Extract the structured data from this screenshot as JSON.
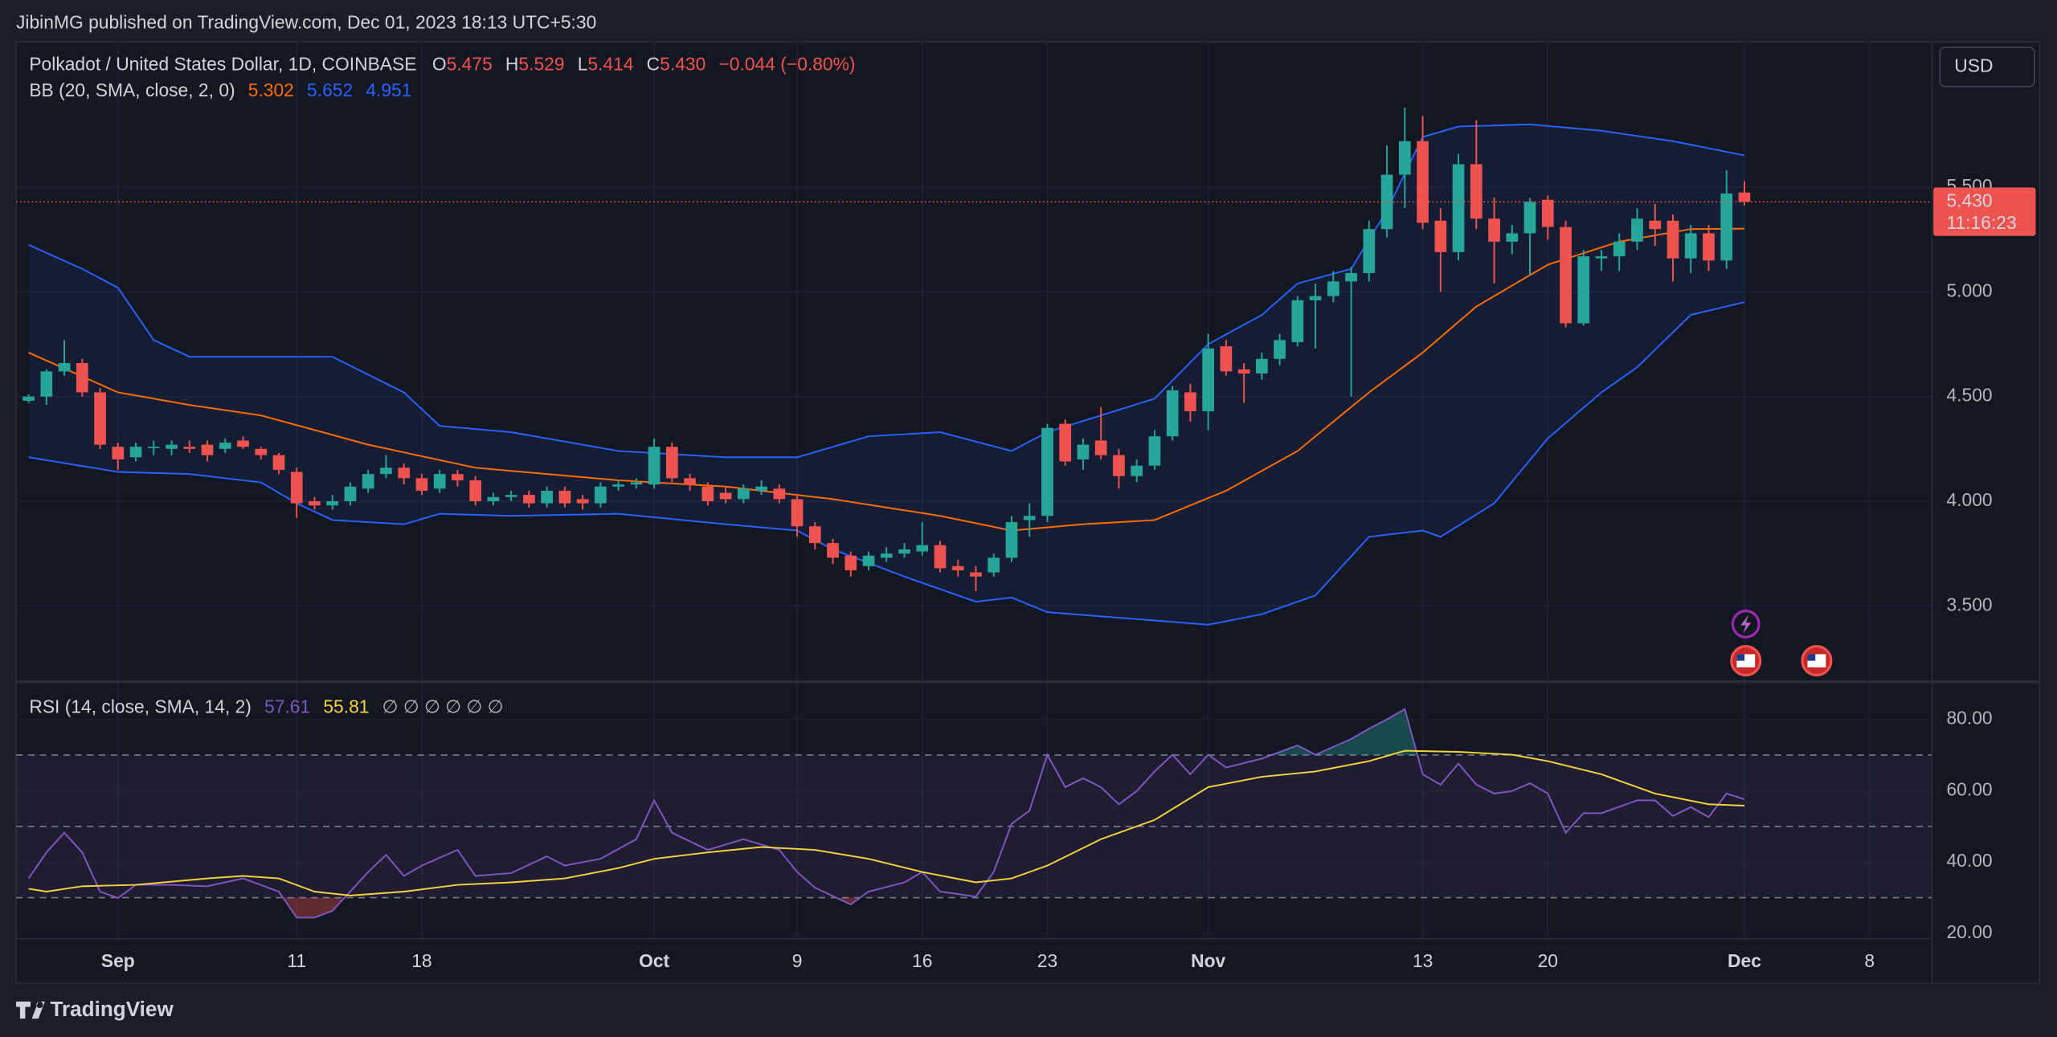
{
  "header": {
    "text": "JibinMG published on TradingView.com, Dec 01, 2023 18:13 UTC+5:30"
  },
  "footer": {
    "brand": "TradingView"
  },
  "currency_button": "USD",
  "chart_data": [
    {
      "type": "candlestick",
      "title": "Polkadot / United States Dollar, 1D, COINBASE",
      "ohlc_legend": {
        "open_label": "O",
        "open": "5.475",
        "high_label": "H",
        "high": "5.529",
        "low_label": "L",
        "low": "5.414",
        "close_label": "C",
        "close": "5.430",
        "change": "−0.044 (−0.80%)"
      },
      "last_price_label": "5.430",
      "countdown": "11:16:23",
      "up_color": "#26a69a",
      "down_color": "#ef5350",
      "x": [
        -5,
        -4,
        -3,
        -2,
        -1,
        0,
        1,
        2,
        3,
        4,
        5,
        6,
        7,
        8,
        9,
        10,
        11,
        12,
        13,
        14,
        15,
        16,
        17,
        18,
        19,
        20,
        21,
        22,
        23,
        24,
        25,
        26,
        27,
        28,
        29,
        30,
        31,
        32,
        33,
        34,
        35,
        36,
        37,
        38,
        39,
        40,
        41,
        42,
        43,
        44,
        45,
        46,
        47,
        48,
        49,
        50,
        51,
        52,
        53,
        54,
        55,
        56,
        57,
        58,
        59,
        60,
        61,
        62,
        63,
        64,
        65,
        66,
        67,
        68,
        69,
        70,
        71,
        72,
        73,
        74,
        75,
        76,
        77,
        78,
        79,
        80,
        81,
        82,
        83,
        84,
        85,
        86,
        87,
        88,
        89,
        90,
        91
      ],
      "open": [
        4.48,
        4.5,
        4.62,
        4.66,
        4.52,
        4.26,
        4.21,
        4.26,
        4.25,
        4.26,
        4.27,
        4.25,
        4.29,
        4.25,
        4.22,
        4.14,
        4.0,
        3.98,
        4.0,
        4.06,
        4.13,
        4.16,
        4.11,
        4.06,
        4.13,
        4.1,
        4.0,
        4.02,
        4.03,
        3.99,
        4.05,
        4.01,
        3.99,
        4.07,
        4.08,
        4.08,
        4.26,
        4.11,
        4.07,
        4.04,
        4.01,
        4.05,
        4.06,
        4.01,
        3.88,
        3.8,
        3.74,
        3.69,
        3.73,
        3.75,
        3.76,
        3.79,
        3.69,
        3.66,
        3.66,
        3.73,
        3.91,
        3.93,
        4.37,
        4.2,
        4.29,
        4.22,
        4.12,
        4.17,
        4.31,
        4.52,
        4.43,
        4.74,
        4.63,
        4.61,
        4.68,
        4.76,
        4.96,
        4.98,
        5.05,
        5.09,
        5.3,
        5.56,
        5.72,
        5.34,
        5.19,
        5.61,
        5.35,
        5.24,
        5.28,
        5.44,
        5.31,
        4.85,
        5.16,
        5.17,
        5.24,
        5.34,
        5.34,
        5.16,
        5.28,
        5.15,
        5.475
      ],
      "high": [
        4.51,
        4.63,
        4.77,
        4.68,
        4.54,
        4.28,
        4.28,
        4.29,
        4.29,
        4.29,
        4.29,
        4.3,
        4.31,
        4.26,
        4.23,
        4.16,
        4.02,
        4.03,
        4.09,
        4.15,
        4.22,
        4.18,
        4.13,
        4.15,
        4.15,
        4.12,
        4.04,
        4.05,
        4.05,
        4.07,
        4.07,
        4.03,
        4.09,
        4.1,
        4.11,
        4.3,
        4.28,
        4.13,
        4.09,
        4.07,
        4.08,
        4.1,
        4.08,
        4.03,
        3.9,
        3.82,
        3.76,
        3.76,
        3.78,
        3.8,
        3.9,
        3.81,
        3.72,
        3.69,
        3.75,
        3.93,
        3.99,
        4.37,
        4.39,
        4.3,
        4.45,
        4.25,
        4.2,
        4.34,
        4.55,
        4.56,
        4.8,
        4.77,
        4.66,
        4.71,
        4.8,
        4.98,
        5.04,
        5.1,
        5.12,
        5.34,
        5.7,
        5.88,
        5.84,
        5.4,
        5.66,
        5.82,
        5.45,
        5.32,
        5.45,
        5.46,
        5.34,
        5.2,
        5.2,
        5.28,
        5.4,
        5.42,
        5.37,
        5.32,
        5.32,
        5.58,
        5.529
      ],
      "low": [
        4.47,
        4.46,
        4.6,
        4.5,
        4.25,
        4.15,
        4.19,
        4.22,
        4.22,
        4.23,
        4.19,
        4.23,
        4.25,
        4.2,
        4.13,
        3.92,
        3.96,
        3.96,
        3.98,
        4.04,
        4.11,
        4.08,
        4.03,
        4.04,
        4.07,
        3.98,
        3.98,
        4.0,
        3.97,
        3.97,
        3.97,
        3.96,
        3.97,
        4.05,
        4.06,
        4.06,
        4.09,
        4.05,
        3.98,
        3.99,
        3.99,
        4.03,
        3.99,
        3.83,
        3.77,
        3.7,
        3.64,
        3.67,
        3.71,
        3.73,
        3.74,
        3.66,
        3.64,
        3.57,
        3.64,
        3.71,
        3.83,
        3.9,
        4.17,
        4.15,
        4.2,
        4.06,
        4.09,
        4.15,
        4.29,
        4.38,
        4.34,
        4.6,
        4.47,
        4.58,
        4.65,
        4.74,
        4.73,
        4.95,
        4.5,
        5.05,
        5.26,
        5.4,
        5.3,
        5.0,
        5.15,
        5.3,
        5.04,
        5.18,
        5.08,
        5.25,
        4.83,
        4.84,
        5.1,
        5.1,
        5.2,
        5.22,
        5.05,
        5.09,
        5.1,
        5.11,
        5.414
      ],
      "close": [
        4.5,
        4.62,
        4.66,
        4.52,
        4.27,
        4.2,
        4.26,
        4.26,
        4.27,
        4.25,
        4.22,
        4.28,
        4.26,
        4.22,
        4.15,
        3.99,
        3.98,
        4.0,
        4.07,
        4.13,
        4.16,
        4.11,
        4.05,
        4.13,
        4.1,
        4.0,
        4.02,
        4.03,
        3.99,
        4.05,
        3.99,
        3.99,
        4.07,
        4.08,
        4.09,
        4.26,
        4.11,
        4.08,
        4.0,
        4.01,
        4.06,
        4.07,
        4.01,
        3.88,
        3.8,
        3.73,
        3.67,
        3.74,
        3.75,
        3.77,
        3.79,
        3.68,
        3.67,
        3.64,
        3.73,
        3.9,
        3.93,
        4.35,
        4.19,
        4.27,
        4.22,
        4.12,
        4.17,
        4.31,
        4.53,
        4.43,
        4.73,
        4.62,
        4.61,
        4.68,
        4.77,
        4.96,
        4.98,
        5.05,
        5.09,
        5.3,
        5.56,
        5.72,
        5.33,
        5.19,
        5.61,
        5.35,
        5.24,
        5.28,
        5.43,
        5.31,
        4.85,
        5.17,
        5.17,
        5.24,
        5.35,
        5.3,
        5.16,
        5.28,
        5.15,
        5.47,
        5.43
      ],
      "overlay": {
        "name": "BB (20, SMA, close, 2, 0)",
        "fill": "rgba(41,98,255,0.08)",
        "series": [
          {
            "color": "#ff6d00",
            "value_label": "5.302",
            "x": [
              -5,
              0,
              4,
              8,
              14,
              20,
              28,
              34,
              40,
              46,
              50,
              54,
              58,
              62,
              66,
              70,
              73,
              76,
              80,
              84,
              88,
              91
            ],
            "values": [
              4.71,
              4.52,
              4.46,
              4.41,
              4.27,
              4.16,
              4.1,
              4.07,
              4.01,
              3.93,
              3.86,
              3.89,
              3.91,
              4.05,
              4.24,
              4.52,
              4.71,
              4.93,
              5.13,
              5.24,
              5.3,
              5.302
            ]
          },
          {
            "color": "#2962ff",
            "value_label": "5.652",
            "x": [
              -5,
              -2,
              0,
              2,
              4,
              8,
              12,
              16,
              18,
              22,
              28,
              34,
              38,
              42,
              46,
              50,
              52,
              55,
              58,
              61,
              64,
              66,
              69,
              71,
              73,
              75,
              79,
              83,
              87,
              91
            ],
            "values": [
              5.225,
              5.11,
              5.02,
              4.77,
              4.69,
              4.69,
              4.69,
              4.52,
              4.36,
              4.33,
              4.24,
              4.21,
              4.21,
              4.31,
              4.33,
              4.24,
              4.33,
              4.41,
              4.49,
              4.75,
              4.89,
              5.04,
              5.11,
              5.39,
              5.74,
              5.79,
              5.8,
              5.77,
              5.72,
              5.652
            ]
          },
          {
            "color": "#2962ff",
            "value_label": "4.951",
            "x": [
              -5,
              0,
              4,
              8,
              10,
              12,
              16,
              18,
              22,
              28,
              34,
              38,
              40,
              44,
              48,
              50,
              52,
              58,
              61,
              64,
              67,
              70,
              73,
              74,
              77,
              80,
              83,
              85,
              88,
              91
            ],
            "values": [
              4.21,
              4.14,
              4.13,
              4.09,
              3.99,
              3.91,
              3.89,
              3.94,
              3.93,
              3.94,
              3.89,
              3.86,
              3.77,
              3.64,
              3.52,
              3.54,
              3.47,
              3.43,
              3.41,
              3.46,
              3.55,
              3.83,
              3.86,
              3.83,
              3.99,
              4.3,
              4.52,
              4.64,
              4.89,
              4.951
            ]
          }
        ]
      },
      "xlim": [
        -5.7,
        101.5
      ],
      "xticks": [
        {
          "value": 0,
          "label": "Sep"
        },
        {
          "value": 10,
          "label": "11"
        },
        {
          "value": 17,
          "label": "18"
        },
        {
          "value": 30,
          "label": "Oct"
        },
        {
          "value": 38,
          "label": "9"
        },
        {
          "value": 45,
          "label": "16"
        },
        {
          "value": 52,
          "label": "23"
        },
        {
          "value": 61,
          "label": "Nov"
        },
        {
          "value": 73,
          "label": "13"
        },
        {
          "value": 80,
          "label": "20"
        },
        {
          "value": 91,
          "label": "Dec"
        },
        {
          "value": 98,
          "label": "8"
        }
      ],
      "ylim": [
        3.144,
        6.194
      ],
      "yticks": [
        {
          "value": 3.5,
          "label": "3.500"
        },
        {
          "value": 4,
          "label": "4.000"
        },
        {
          "value": 4.5,
          "label": "4.500"
        },
        {
          "value": 5,
          "label": "5.000"
        },
        {
          "value": 5.5,
          "label": "5.500"
        }
      ],
      "grid": true
    },
    {
      "type": "line",
      "title": "RSI (14, close, SMA, 14, 2)",
      "placeholders": "∅ ∅ ∅ ∅ ∅ ∅",
      "series": [
        {
          "color": "#7e57c2",
          "value_label": "57.61",
          "x": [
            -5,
            -4,
            -3,
            -2,
            -1,
            0,
            1,
            3,
            5,
            7,
            9,
            10,
            11,
            12,
            14,
            15,
            16,
            17,
            19,
            20,
            22,
            24,
            25,
            27,
            29,
            30,
            31,
            33,
            35,
            37,
            38,
            39,
            41,
            42,
            44,
            45,
            46,
            48,
            49,
            50,
            51,
            52,
            53,
            54,
            55,
            56,
            57,
            58,
            59,
            60,
            61,
            62,
            64,
            66,
            67,
            69,
            70,
            71,
            72,
            73,
            74,
            75,
            76,
            77,
            78,
            79,
            80,
            81,
            82,
            83,
            85,
            86,
            87,
            88,
            89,
            90,
            91
          ],
          "values": [
            35.4,
            42.7,
            48.2,
            42.7,
            31.7,
            29.9,
            33.6,
            33.6,
            33.2,
            35.4,
            31.7,
            24.4,
            24.4,
            26.3,
            37.2,
            42.0,
            36.1,
            39.0,
            43.4,
            36.1,
            36.9,
            41.6,
            39.0,
            40.9,
            46.4,
            57.3,
            48.2,
            43.4,
            46.4,
            43.4,
            37.2,
            32.8,
            28.1,
            31.7,
            34.3,
            37.2,
            31.7,
            30.3,
            37.2,
            50.7,
            54.4,
            70.1,
            61.0,
            63.5,
            61.0,
            56.2,
            59.9,
            65.4,
            70.1,
            64.6,
            70.1,
            66.5,
            69.0,
            72.7,
            70.1,
            74.5,
            77.4,
            80.0,
            82.9,
            64.6,
            61.7,
            67.6,
            61.7,
            59.2,
            59.9,
            62.1,
            59.2,
            48.2,
            53.7,
            53.7,
            57.3,
            57.3,
            52.9,
            55.4,
            52.6,
            59.2,
            57.61
          ]
        },
        {
          "color": "#f5d33f",
          "value_label": "55.81",
          "x": [
            -5,
            -4,
            -2,
            1,
            5,
            7,
            9,
            11,
            13,
            16,
            19,
            22,
            25,
            28,
            30,
            33,
            36,
            39,
            42,
            45,
            48,
            50,
            52,
            55,
            58,
            61,
            64,
            67,
            70,
            72,
            75,
            78,
            80,
            83,
            86,
            89,
            91
          ],
          "values": [
            32.5,
            31.7,
            33.2,
            33.6,
            35.4,
            36.1,
            35.4,
            31.7,
            30.6,
            31.7,
            33.6,
            34.3,
            35.4,
            38.3,
            40.9,
            42.7,
            44.2,
            43.4,
            40.9,
            37.2,
            34.3,
            35.4,
            39.0,
            46.4,
            51.8,
            61.0,
            63.9,
            65.4,
            68.3,
            71.2,
            70.9,
            70.1,
            68.3,
            64.6,
            59.2,
            56.2,
            55.81
          ]
        }
      ],
      "band_lines": [
        70,
        50,
        30
      ],
      "band_fill": "rgba(126,87,194,0.1)",
      "overbought_color": "rgba(38,166,154,0.35)",
      "oversold_color": "rgba(239,83,80,0.35)",
      "xlim": [
        -5.7,
        101.5
      ],
      "ylim": [
        18.5,
        90.2
      ],
      "yticks": [
        {
          "value": 20,
          "label": "20.00"
        },
        {
          "value": 40,
          "label": "40.00"
        },
        {
          "value": 60,
          "label": "60.00"
        },
        {
          "value": 80,
          "label": "80.00"
        }
      ],
      "grid": true
    }
  ]
}
